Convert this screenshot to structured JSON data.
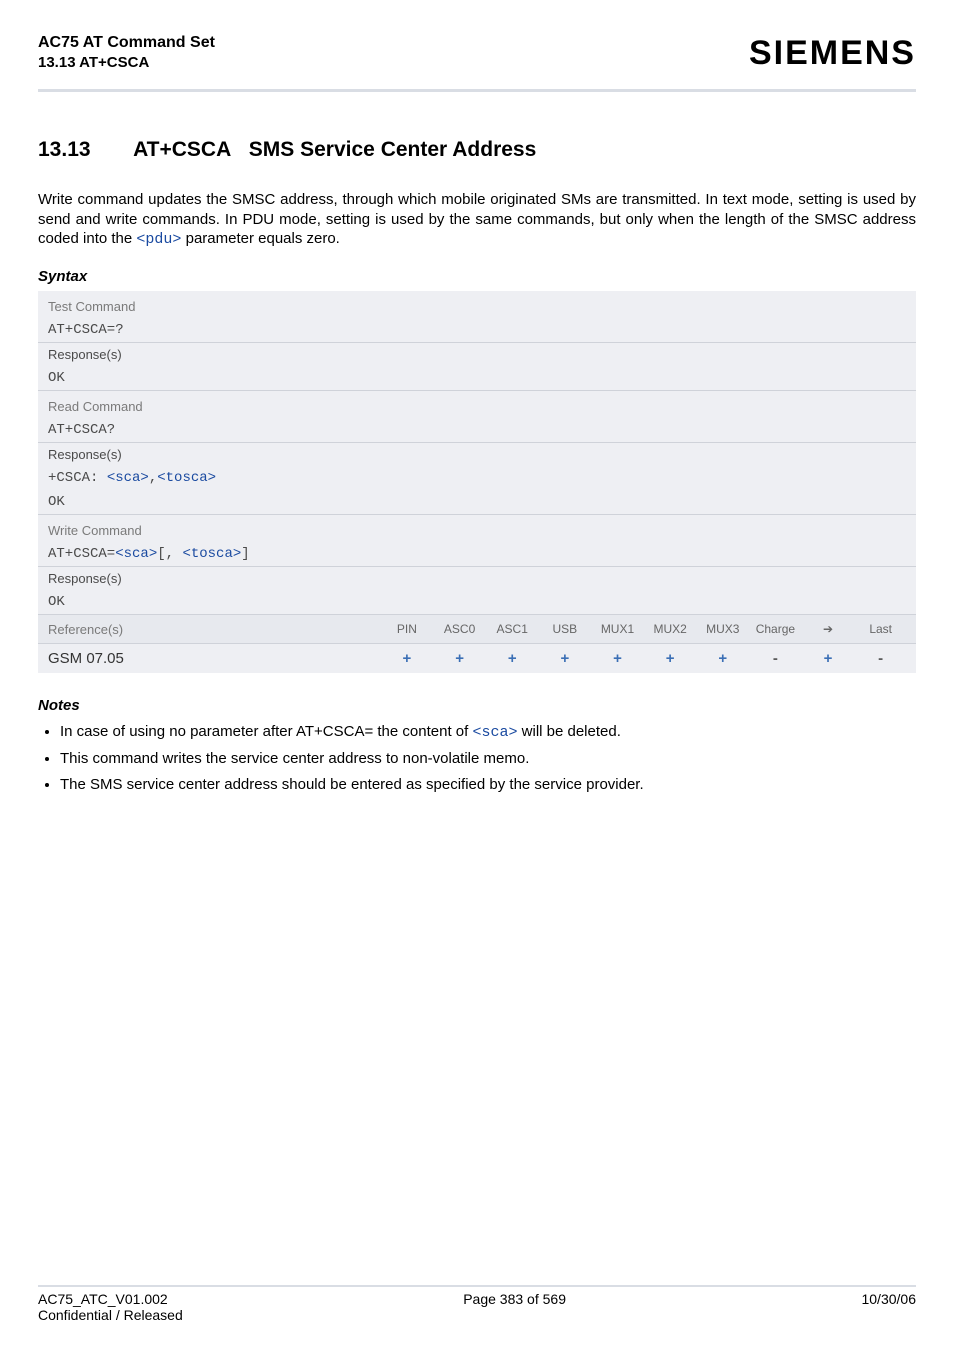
{
  "header": {
    "title": "AC75 AT Command Set",
    "subtitle": "13.13 AT+CSCA",
    "brand": "SIEMENS"
  },
  "section": {
    "number": "13.13",
    "title_prefix": "AT+CSCA",
    "title_rest": "SMS Service Center Address"
  },
  "intro": {
    "text_before_param": "Write command updates the SMSC address, through which mobile originated SMs are transmitted. In text mode, setting is used by send and write commands. In PDU mode, setting is used by the same commands, but only when the length of the SMSC address coded into the ",
    "param": "<pdu>",
    "text_after_param": " parameter equals zero."
  },
  "labels": {
    "syntax": "Syntax",
    "notes": "Notes"
  },
  "syntax": {
    "test_label": "Test Command",
    "test_cmd": "AT+CSCA=?",
    "response_label": "Response(s)",
    "ok": "OK",
    "read_label": "Read Command",
    "read_cmd": "AT+CSCA?",
    "read_resp_prefix": "+CSCA: ",
    "read_resp_p1": "<sca>",
    "read_resp_sep": ",",
    "read_resp_p2": "<tosca>",
    "write_label": "Write Command",
    "write_cmd_prefix": "AT+CSCA=",
    "write_p1": "<sca>",
    "write_bracket_open": "[, ",
    "write_p2": "<tosca>",
    "write_bracket_close": "]"
  },
  "reference": {
    "ref_label": "Reference(s)",
    "ref_value": "GSM 07.05",
    "columns": [
      "PIN",
      "ASC0",
      "ASC1",
      "USB",
      "MUX1",
      "MUX2",
      "MUX3",
      "Charge",
      "➔",
      "Last"
    ],
    "values": [
      "+",
      "+",
      "+",
      "+",
      "+",
      "+",
      "+",
      "-",
      "+",
      "-"
    ],
    "value_styles": [
      "plus",
      "plus",
      "plus",
      "plus",
      "plus",
      "plus",
      "plus",
      "minus",
      "plus",
      "minus"
    ]
  },
  "notes": [
    {
      "before": "In case of using no parameter after AT+CSCA= the content of ",
      "param": "<sca>",
      "after": " will be deleted."
    },
    {
      "before": "This command writes the service center address to non-volatile memo.",
      "param": "",
      "after": ""
    },
    {
      "before": "The SMS service center address should be entered as specified by the service provider.",
      "param": "",
      "after": ""
    }
  ],
  "footer": {
    "left": "AC75_ATC_V01.002",
    "left2": "Confidential / Released",
    "center": "Page 383 of 569",
    "right": "10/30/06"
  },
  "colors": {
    "rule": "#d9dde4",
    "panel_bg": "#eeeff3",
    "param_link": "#1a4aa0",
    "plus": "#3b6fb5"
  }
}
